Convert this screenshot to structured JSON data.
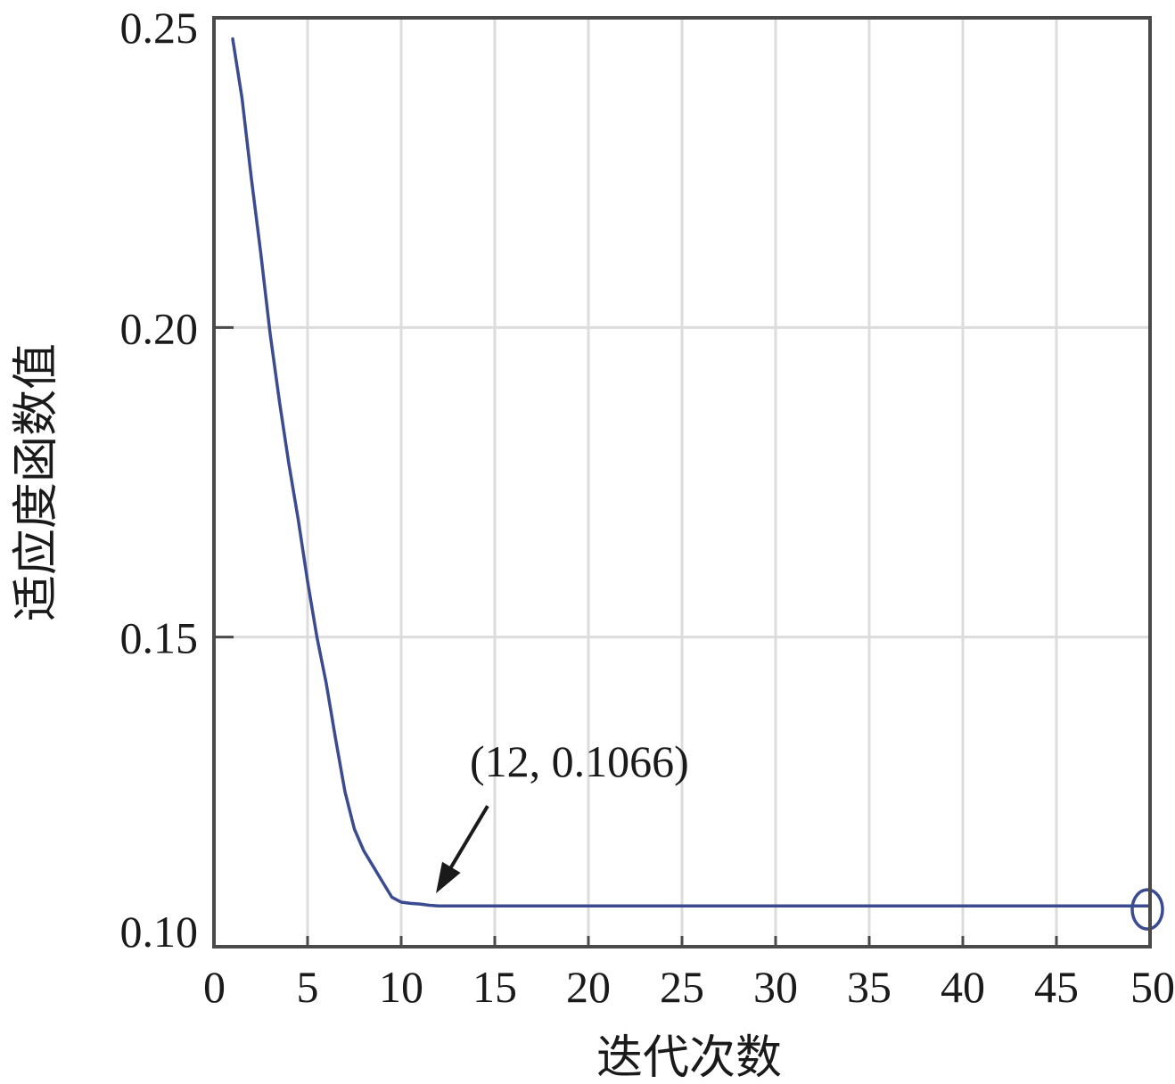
{
  "chart_data": {
    "type": "line",
    "title": "",
    "xlabel": "迭代次数",
    "ylabel": "适应度函数值",
    "xlim": [
      0,
      50
    ],
    "ylim": [
      0.1,
      0.25
    ],
    "xticks": [
      0,
      5,
      10,
      15,
      20,
      25,
      30,
      35,
      40,
      45,
      50
    ],
    "xtick_labels": [
      "0",
      "5",
      "10",
      "15",
      "20",
      "25",
      "30",
      "35",
      "40",
      "45",
      "50"
    ],
    "yticks": [
      0.1,
      0.15,
      0.2,
      0.25
    ],
    "ytick_labels": [
      "0.10",
      "0.15",
      "0.20",
      "0.25"
    ],
    "grid": true,
    "series": [
      {
        "color": "#3b4b8f",
        "x": [
          1,
          1.5,
          2,
          2.5,
          3,
          3.5,
          4,
          4.5,
          5,
          5.5,
          6,
          6.5,
          7,
          7.5,
          8,
          8.5,
          9,
          9.5,
          10,
          10.5,
          11,
          11.5,
          12,
          13,
          14,
          16,
          20,
          25,
          30,
          35,
          40,
          45,
          50
        ],
        "y": [
          0.2466,
          0.237,
          0.224,
          0.212,
          0.199,
          0.188,
          0.178,
          0.169,
          0.159,
          0.15,
          0.1425,
          0.1335,
          0.125,
          0.119,
          0.1155,
          0.113,
          0.1105,
          0.108,
          0.1072,
          0.107,
          0.1069,
          0.1067,
          0.1066,
          0.1066,
          0.1066,
          0.1066,
          0.1066,
          0.1066,
          0.1066,
          0.1066,
          0.1066,
          0.1066,
          0.1066
        ]
      }
    ],
    "annotation": {
      "text": "(12, 0.1066)",
      "x": 12,
      "y": 0.1066
    },
    "highlight_point": {
      "x": 50,
      "y": 0.1066
    }
  }
}
